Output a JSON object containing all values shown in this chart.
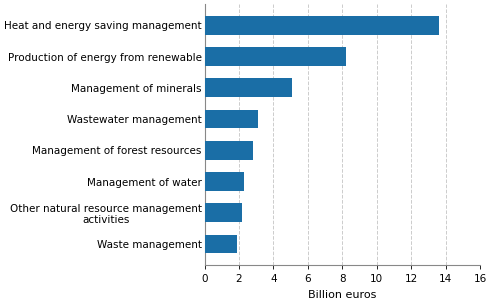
{
  "categories": [
    "Waste management",
    "Other natural resource management\nactivities",
    "Management of water",
    "Management of forest resources",
    "Wastewater management",
    "Management of minerals",
    "Production of energy from renewable",
    "Heat and energy saving management"
  ],
  "values": [
    1.9,
    2.2,
    2.3,
    2.8,
    3.1,
    5.1,
    8.2,
    13.6
  ],
  "bar_color": "#1a6ea6",
  "xlabel": "Billion euros",
  "xlim": [
    0,
    16
  ],
  "xticks": [
    0,
    2,
    4,
    6,
    8,
    10,
    12,
    14,
    16
  ],
  "grid_color": "#cccccc",
  "grid_style": "--",
  "bar_height": 0.6,
  "label_fontsize": 7.5,
  "tick_fontsize": 7.5,
  "xlabel_fontsize": 8.0
}
